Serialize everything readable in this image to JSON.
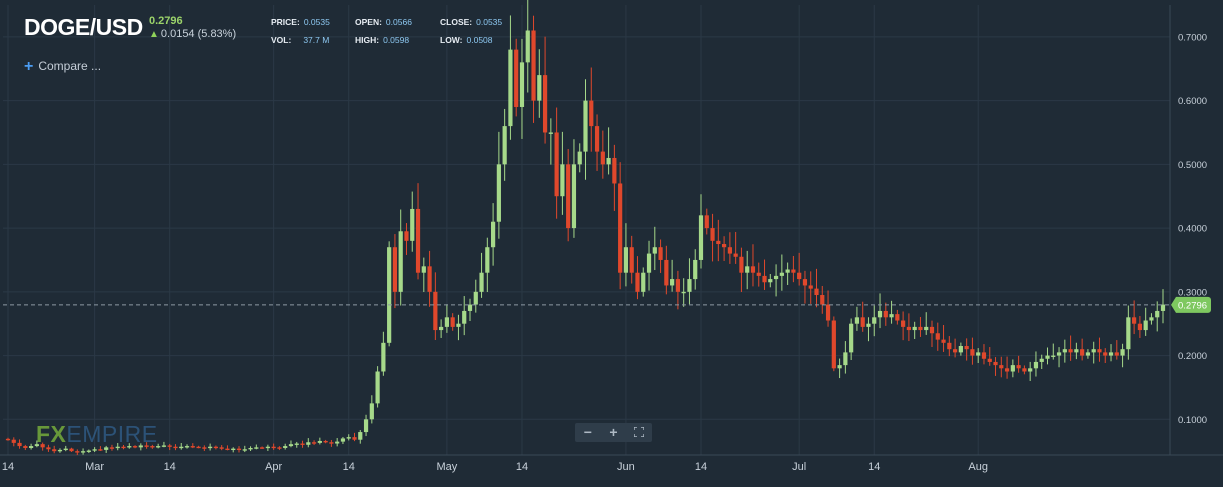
{
  "header": {
    "symbol": "DOGE/USD",
    "last_price": "0.2796",
    "change": "0.0154 (5.83%)",
    "compare_label": "Compare ...",
    "stats": [
      {
        "label": "PRICE:",
        "value": "0.0535"
      },
      {
        "label": "OPEN:",
        "value": "0.0566"
      },
      {
        "label": "CLOSE:",
        "value": "0.0535"
      },
      {
        "label": "VOL:",
        "value": "37.7 M"
      },
      {
        "label": "HIGH:",
        "value": "0.0598"
      },
      {
        "label": "LOW:",
        "value": "0.0508"
      }
    ]
  },
  "watermark": {
    "part1": "FX",
    "part2": "EMPIRE"
  },
  "toolbar": {
    "zoom_out": "−",
    "zoom_in": "+",
    "fullscreen_icon": "fullscreen-icon"
  },
  "colors": {
    "background": "#1f2b36",
    "grid": "#2b3946",
    "up": "#a6d98a",
    "down": "#e0482c",
    "current_price": "#7ec860"
  },
  "chart_data": {
    "type": "candlestick",
    "title": "DOGE/USD",
    "xlabel": "",
    "ylabel": "",
    "ylim": [
      0.044,
      0.75
    ],
    "y_ticks": [
      "0.1000",
      "0.2000",
      "0.3000",
      "0.4000",
      "0.5000",
      "0.6000",
      "0.7000"
    ],
    "y_tick_values": [
      0.1,
      0.2,
      0.3,
      0.4,
      0.5,
      0.6,
      0.7
    ],
    "x_ticks": [
      {
        "label": "14",
        "date": "2021-02-14"
      },
      {
        "label": "Mar",
        "date": "2021-03-01"
      },
      {
        "label": "14",
        "date": "2021-03-14"
      },
      {
        "label": "Apr",
        "date": "2021-04-01"
      },
      {
        "label": "14",
        "date": "2021-04-14"
      },
      {
        "label": "May",
        "date": "2021-05-01"
      },
      {
        "label": "14",
        "date": "2021-05-14"
      },
      {
        "label": "Jun",
        "date": "2021-06-01"
      },
      {
        "label": "14",
        "date": "2021-06-14"
      },
      {
        "label": "Jul",
        "date": "2021-07-01"
      },
      {
        "label": "14",
        "date": "2021-07-14"
      },
      {
        "label": "Aug",
        "date": "2021-08-01"
      }
    ],
    "grid": true,
    "current_price": 0.2796,
    "current_price_label": "0.2796",
    "start_date": "2021-02-14",
    "closes": [
      0.068,
      0.063,
      0.058,
      0.055,
      0.058,
      0.061,
      0.056,
      0.053,
      0.05,
      0.052,
      0.054,
      0.05,
      0.048,
      0.05,
      0.051,
      0.053,
      0.052,
      0.056,
      0.055,
      0.057,
      0.056,
      0.058,
      0.056,
      0.059,
      0.058,
      0.057,
      0.058,
      0.059,
      0.057,
      0.056,
      0.057,
      0.058,
      0.057,
      0.056,
      0.055,
      0.057,
      0.056,
      0.054,
      0.053,
      0.054,
      0.052,
      0.053,
      0.055,
      0.056,
      0.055,
      0.057,
      0.056,
      0.055,
      0.058,
      0.061,
      0.062,
      0.06,
      0.064,
      0.063,
      0.066,
      0.064,
      0.062,
      0.065,
      0.07,
      0.072,
      0.068,
      0.08,
      0.1,
      0.125,
      0.175,
      0.22,
      0.37,
      0.3,
      0.395,
      0.38,
      0.43,
      0.33,
      0.34,
      0.3,
      0.24,
      0.245,
      0.26,
      0.245,
      0.25,
      0.27,
      0.28,
      0.3,
      0.33,
      0.37,
      0.41,
      0.5,
      0.56,
      0.68,
      0.59,
      0.66,
      0.71,
      0.6,
      0.64,
      0.55,
      0.55,
      0.45,
      0.5,
      0.4,
      0.5,
      0.52,
      0.6,
      0.56,
      0.52,
      0.5,
      0.51,
      0.47,
      0.33,
      0.37,
      0.33,
      0.3,
      0.33,
      0.36,
      0.37,
      0.35,
      0.31,
      0.32,
      0.3,
      0.3,
      0.32,
      0.35,
      0.42,
      0.4,
      0.38,
      0.375,
      0.37,
      0.36,
      0.355,
      0.33,
      0.34,
      0.33,
      0.325,
      0.315,
      0.32,
      0.325,
      0.33,
      0.335,
      0.33,
      0.32,
      0.31,
      0.305,
      0.295,
      0.28,
      0.255,
      0.18,
      0.185,
      0.205,
      0.25,
      0.26,
      0.245,
      0.25,
      0.26,
      0.27,
      0.26,
      0.265,
      0.255,
      0.245,
      0.24,
      0.245,
      0.24,
      0.245,
      0.235,
      0.225,
      0.22,
      0.21,
      0.205,
      0.215,
      0.21,
      0.2,
      0.205,
      0.195,
      0.19,
      0.185,
      0.18,
      0.175,
      0.185,
      0.18,
      0.175,
      0.18,
      0.19,
      0.195,
      0.2,
      0.2,
      0.205,
      0.21,
      0.205,
      0.21,
      0.2,
      0.205,
      0.21,
      0.205,
      0.2,
      0.205,
      0.2,
      0.21,
      0.26,
      0.25,
      0.24,
      0.255,
      0.26,
      0.27,
      0.28
    ]
  }
}
